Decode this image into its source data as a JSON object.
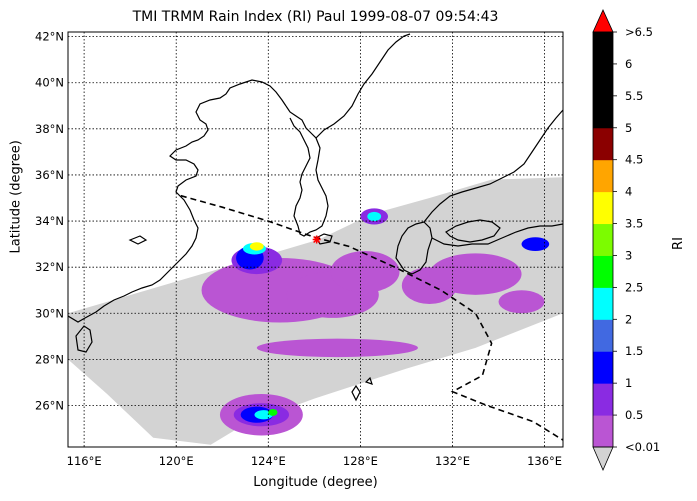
{
  "title": "TMI TRMM Rain Index (RI) Paul 1999-08-07 09:54:43",
  "xlabel": "Longitude (degree)",
  "ylabel": "Latitude (degree)",
  "colorbar_label": "RI",
  "lon_range": [
    115.3,
    136.8
  ],
  "lat_range": [
    24.2,
    42.2
  ],
  "lon_ticks": [
    {
      "value": 116,
      "label": "116°E"
    },
    {
      "value": 120,
      "label": "120°E"
    },
    {
      "value": 124,
      "label": "124°E"
    },
    {
      "value": 128,
      "label": "128°E"
    },
    {
      "value": 132,
      "label": "132°E"
    },
    {
      "value": 136,
      "label": "136°E"
    }
  ],
  "lat_ticks": [
    {
      "value": 26,
      "label": "26°N"
    },
    {
      "value": 28,
      "label": "28°N"
    },
    {
      "value": 30,
      "label": "30°N"
    },
    {
      "value": 32,
      "label": "32°N"
    },
    {
      "value": 34,
      "label": "34°N"
    },
    {
      "value": 36,
      "label": "36°N"
    },
    {
      "value": 38,
      "label": "38°N"
    },
    {
      "value": 40,
      "label": "40°N"
    },
    {
      "value": 42,
      "label": "42°N"
    }
  ],
  "colorbar": {
    "under_color": "#d3d3d3",
    "over_color": "#ff0000",
    "colors": [
      "#ba55d3",
      "#8a2be2",
      "#0000ff",
      "#4169e1",
      "#00ffff",
      "#00ff00",
      "#7cfc00",
      "#ffff00",
      "#ffa500",
      "#8b0000",
      "#000000",
      "#000000",
      "#000000"
    ],
    "labels": [
      "<0.01",
      "0.5",
      "1",
      "1.5",
      "2",
      "2.5",
      "3",
      "3.5",
      "4",
      "4.5",
      "5",
      "5.5",
      "6",
      ">6.5"
    ]
  },
  "swath_polygon": [
    [
      115.3,
      30.0
    ],
    [
      123.5,
      32.4
    ],
    [
      126.2,
      33.2
    ],
    [
      128.5,
      34.3
    ],
    [
      131.0,
      35.0
    ],
    [
      133.7,
      35.8
    ],
    [
      136.8,
      35.9
    ],
    [
      136.8,
      30.0
    ],
    [
      133.0,
      28.5
    ],
    [
      130.0,
      27.6
    ],
    [
      126.0,
      26.3
    ],
    [
      123.0,
      25.2
    ],
    [
      121.5,
      24.3
    ],
    [
      119.0,
      24.6
    ],
    [
      117.0,
      26.5
    ],
    [
      115.3,
      28.0
    ]
  ],
  "rain_patches": [
    {
      "lon": 124.5,
      "lat": 31.0,
      "rlon": 3.4,
      "rlat": 1.4,
      "level": 0
    },
    {
      "lon": 126.8,
      "lat": 30.8,
      "rlon": 2.0,
      "rlat": 1.0,
      "level": 0
    },
    {
      "lon": 128.2,
      "lat": 31.8,
      "rlon": 1.5,
      "rlat": 0.9,
      "level": 0
    },
    {
      "lon": 131.0,
      "lat": 31.2,
      "rlon": 1.2,
      "rlat": 0.8,
      "level": 0
    },
    {
      "lon": 133.0,
      "lat": 31.7,
      "rlon": 2.0,
      "rlat": 0.9,
      "level": 0
    },
    {
      "lon": 135.0,
      "lat": 30.5,
      "rlon": 1.0,
      "rlat": 0.5,
      "level": 0
    },
    {
      "lon": 127.0,
      "lat": 28.5,
      "rlon": 3.5,
      "rlat": 0.4,
      "level": 0
    },
    {
      "lon": 123.7,
      "lat": 25.6,
      "rlon": 1.8,
      "rlat": 0.9,
      "level": 0
    },
    {
      "lon": 123.5,
      "lat": 32.3,
      "rlon": 1.1,
      "rlat": 0.6,
      "level": 1
    },
    {
      "lon": 123.2,
      "lat": 32.4,
      "rlon": 0.6,
      "rlat": 0.5,
      "level": 2
    },
    {
      "lon": 123.4,
      "lat": 32.8,
      "rlon": 0.5,
      "rlat": 0.25,
      "level": 4
    },
    {
      "lon": 123.5,
      "lat": 32.9,
      "rlon": 0.3,
      "rlat": 0.18,
      "level": 7
    },
    {
      "lon": 128.6,
      "lat": 34.2,
      "rlon": 0.6,
      "rlat": 0.35,
      "level": 1
    },
    {
      "lon": 128.6,
      "lat": 34.2,
      "rlon": 0.3,
      "rlat": 0.2,
      "level": 4
    },
    {
      "lon": 123.7,
      "lat": 25.6,
      "rlon": 1.2,
      "rlat": 0.5,
      "level": 1
    },
    {
      "lon": 123.5,
      "lat": 25.6,
      "rlon": 0.7,
      "rlat": 0.35,
      "level": 2
    },
    {
      "lon": 123.8,
      "lat": 25.6,
      "rlon": 0.4,
      "rlat": 0.2,
      "level": 4
    },
    {
      "lon": 124.2,
      "lat": 25.7,
      "rlon": 0.2,
      "rlat": 0.15,
      "level": 5
    },
    {
      "lon": 135.6,
      "lat": 33.0,
      "rlon": 0.6,
      "rlat": 0.3,
      "level": 2
    }
  ],
  "track": [
    [
      120.2,
      35.1
    ],
    [
      122.0,
      34.6
    ],
    [
      124.0,
      34.0
    ],
    [
      126.0,
      33.3
    ],
    [
      127.5,
      32.9
    ],
    [
      129.5,
      32.0
    ],
    [
      131.5,
      31.0
    ],
    [
      133.0,
      30.0
    ],
    [
      133.7,
      28.7
    ],
    [
      133.3,
      27.3
    ],
    [
      132.0,
      26.6
    ],
    [
      133.5,
      26.0
    ],
    [
      135.5,
      25.3
    ],
    [
      136.8,
      24.5
    ]
  ],
  "center_marker": {
    "lon": 126.1,
    "lat": 33.2
  }
}
